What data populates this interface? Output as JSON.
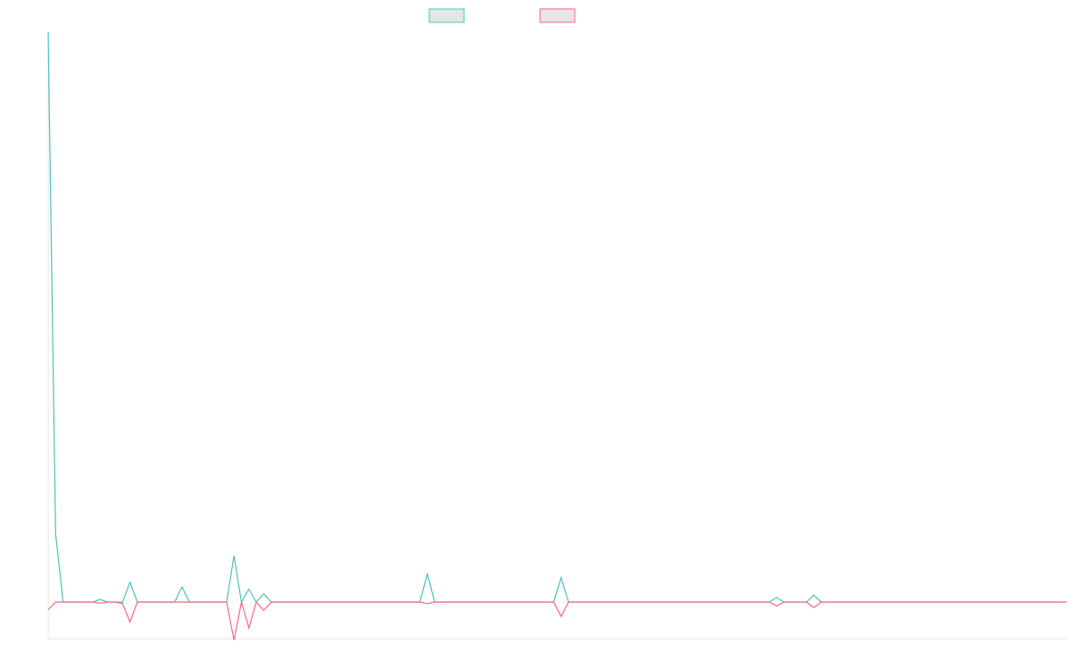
{
  "chart_data": {
    "type": "line",
    "title": "",
    "xlabel": "",
    "ylabel": "",
    "legend_position": "top-center",
    "grid": false,
    "x_count": 138,
    "ylim": [
      -100,
      1500
    ],
    "series": [
      {
        "color": "#4bc0c0",
        "points": [
          [
            0,
            1500
          ],
          [
            1,
            180
          ],
          [
            2,
            0
          ],
          [
            3,
            0
          ],
          [
            4,
            0
          ],
          [
            5,
            0
          ],
          [
            6,
            0
          ],
          [
            7,
            7
          ],
          [
            8,
            0
          ],
          [
            9,
            0
          ],
          [
            10,
            0
          ],
          [
            11,
            52
          ],
          [
            12,
            0
          ],
          [
            13,
            0
          ],
          [
            14,
            0
          ],
          [
            15,
            0
          ],
          [
            16,
            0
          ],
          [
            17,
            0
          ],
          [
            18,
            40
          ],
          [
            19,
            0
          ],
          [
            20,
            0
          ],
          [
            21,
            0
          ],
          [
            22,
            0
          ],
          [
            23,
            0
          ],
          [
            24,
            0
          ],
          [
            25,
            122
          ],
          [
            26,
            0
          ],
          [
            27,
            34
          ],
          [
            28,
            0
          ],
          [
            29,
            22
          ],
          [
            30,
            0
          ],
          [
            31,
            0
          ],
          [
            50,
            0
          ],
          [
            51,
            74
          ],
          [
            52,
            0
          ],
          [
            53,
            0
          ],
          [
            68,
            0
          ],
          [
            69,
            64
          ],
          [
            70,
            0
          ],
          [
            71,
            0
          ],
          [
            97,
            0
          ],
          [
            98,
            12
          ],
          [
            99,
            0
          ],
          [
            100,
            0
          ],
          [
            102,
            0
          ],
          [
            103,
            18
          ],
          [
            104,
            0
          ],
          [
            105,
            0
          ],
          [
            137,
            0
          ]
        ]
      },
      {
        "color": "#ff6384",
        "points": [
          [
            0,
            -20
          ],
          [
            1,
            0
          ],
          [
            2,
            0
          ],
          [
            3,
            0
          ],
          [
            4,
            0
          ],
          [
            5,
            0
          ],
          [
            6,
            0
          ],
          [
            7,
            -3
          ],
          [
            8,
            0
          ],
          [
            9,
            0
          ],
          [
            10,
            -4
          ],
          [
            11,
            -52
          ],
          [
            12,
            0
          ],
          [
            13,
            0
          ],
          [
            14,
            0
          ],
          [
            15,
            0
          ],
          [
            16,
            0
          ],
          [
            17,
            0
          ],
          [
            18,
            0
          ],
          [
            19,
            0
          ],
          [
            20,
            0
          ],
          [
            21,
            0
          ],
          [
            22,
            0
          ],
          [
            23,
            0
          ],
          [
            24,
            0
          ],
          [
            25,
            -100
          ],
          [
            26,
            0
          ],
          [
            27,
            -68
          ],
          [
            28,
            0
          ],
          [
            29,
            -22
          ],
          [
            30,
            0
          ],
          [
            31,
            0
          ],
          [
            50,
            0
          ],
          [
            51,
            -4
          ],
          [
            52,
            0
          ],
          [
            53,
            0
          ],
          [
            68,
            0
          ],
          [
            69,
            -38
          ],
          [
            70,
            0
          ],
          [
            71,
            0
          ],
          [
            97,
            0
          ],
          [
            98,
            -10
          ],
          [
            99,
            0
          ],
          [
            100,
            0
          ],
          [
            102,
            0
          ],
          [
            103,
            -14
          ],
          [
            104,
            0
          ],
          [
            105,
            0
          ],
          [
            137,
            0
          ]
        ]
      }
    ]
  }
}
